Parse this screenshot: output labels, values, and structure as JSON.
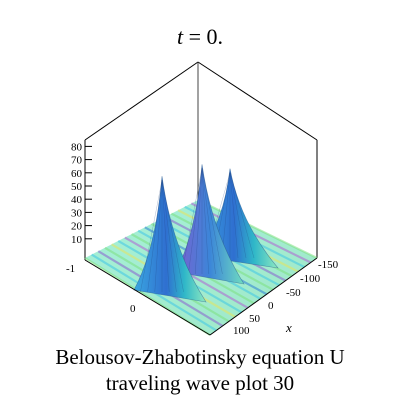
{
  "chart_data": {
    "type": "surface",
    "title_var": "t",
    "title_rest": " = 0.",
    "z_ticks": [
      "10",
      "20",
      "30",
      "40",
      "50",
      "60",
      "70",
      "80"
    ],
    "z_range": [
      0,
      80
    ],
    "x_axis_label": "x",
    "x_ticks": [
      "-150",
      "-100",
      "-50",
      "0",
      "50",
      "100"
    ],
    "y_ticks": [
      "-1",
      "0"
    ],
    "peaks_approx": [
      {
        "x": 20,
        "height": 67
      },
      {
        "x": -20,
        "height": 63
      },
      {
        "x": -60,
        "height": 50
      }
    ],
    "caption_line1": "Belousov-Zhabotinsky equation U",
    "caption_line2": "traveling wave plot 30",
    "colors": {
      "base_mint": "#9ff0d6",
      "green": "#7ee07f",
      "cyan": "#3fc7e6",
      "blue": "#2f7fd6",
      "purple": "#8a5fcf",
      "magenta": "#b063d4",
      "yellow": "#e8e35c"
    }
  }
}
